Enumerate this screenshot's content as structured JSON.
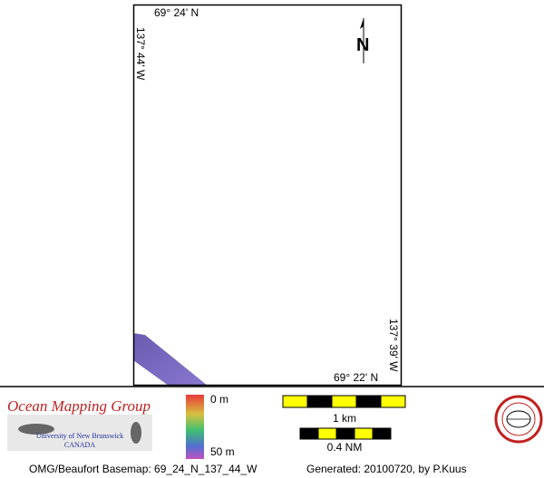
{
  "map": {
    "top_left_lat": "69° 24' N",
    "top_left_lon": "137° 44' W",
    "bottom_right_lat": "69° 22' N",
    "bottom_right_lon": "137° 39' W",
    "north": "N"
  },
  "logo": {
    "title": "Ocean Mapping Group",
    "university": "University of New Brunswick",
    "country": "CANADA"
  },
  "legend": {
    "depth_top": "0 m",
    "depth_bottom": "50 m"
  },
  "scale": {
    "km": "1 km",
    "nm": "0.4 NM"
  },
  "footer": {
    "basemap": "OMG/Beaufort Basemap: 69_24_N_137_44_W",
    "generated": "Generated: 20100720, by P.Kuus"
  }
}
